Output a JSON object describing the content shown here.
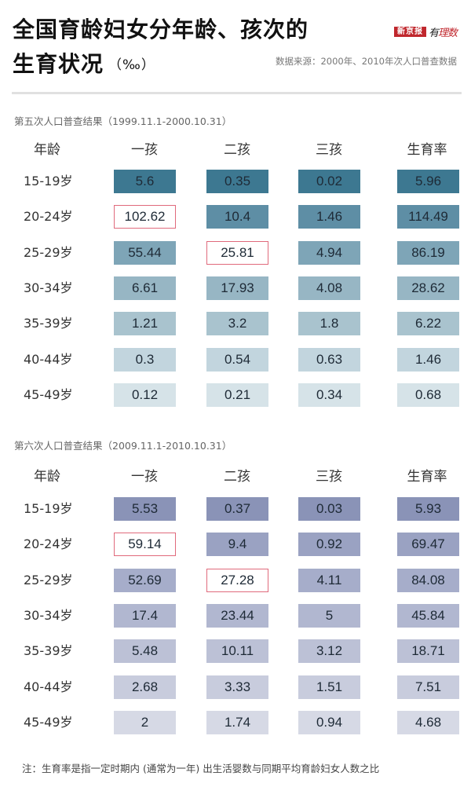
{
  "header": {
    "title_line1": "全国育龄妇女分年龄、孩次的",
    "title_line2": "生育状况",
    "title_unit": "（‰）",
    "logo_paper": "新京报",
    "logo_brand_a": "有",
    "logo_brand_b": "理数",
    "source": "数据来源：2000年、2010年次人口普查数据"
  },
  "colors": {
    "census5_palette": [
      "#3d7891",
      "#5e8ea5",
      "#7ea5b7",
      "#97b6c4",
      "#a9c3ce",
      "#c2d5de",
      "#d6e3e8"
    ],
    "census6_palette": [
      "#8a93b7",
      "#9aa2c2",
      "#a6adca",
      "#b1b7d0",
      "#bcc1d6",
      "#c8ccdd",
      "#d6d9e5"
    ],
    "highlight_border": "#e06a7c",
    "divider": "#e0e0e0"
  },
  "chart_data": [
    {
      "type": "table",
      "title": "第五次人口普查结果（1999.11.1-2000.10.31）",
      "columns": [
        "年龄",
        "一孩",
        "二孩",
        "三孩",
        "生育率"
      ],
      "categories": [
        "15-19岁",
        "20-24岁",
        "25-29岁",
        "30-34岁",
        "35-39岁",
        "40-44岁",
        "45-49岁"
      ],
      "series": [
        {
          "name": "一孩",
          "values": [
            5.6,
            102.62,
            55.44,
            6.61,
            1.21,
            0.3,
            0.12
          ]
        },
        {
          "name": "二孩",
          "values": [
            0.35,
            10.4,
            25.81,
            17.93,
            3.2,
            0.54,
            0.21
          ]
        },
        {
          "name": "三孩",
          "values": [
            0.02,
            1.46,
            4.94,
            4.08,
            1.8,
            0.63,
            0.34
          ]
        },
        {
          "name": "生育率",
          "values": [
            5.96,
            114.49,
            86.19,
            28.62,
            6.22,
            1.46,
            0.68
          ]
        }
      ],
      "highlighted": [
        {
          "row": "20-24岁",
          "col": "一孩"
        },
        {
          "row": "25-29岁",
          "col": "二孩"
        }
      ],
      "unit": "‰"
    },
    {
      "type": "table",
      "title": "第六次人口普查结果（2009.11.1-2010.10.31）",
      "columns": [
        "年龄",
        "一孩",
        "二孩",
        "三孩",
        "生育率"
      ],
      "categories": [
        "15-19岁",
        "20-24岁",
        "25-29岁",
        "30-34岁",
        "35-39岁",
        "40-44岁",
        "45-49岁"
      ],
      "series": [
        {
          "name": "一孩",
          "values": [
            5.53,
            59.14,
            52.69,
            17.4,
            5.48,
            2.68,
            2
          ]
        },
        {
          "name": "二孩",
          "values": [
            0.37,
            9.4,
            27.28,
            23.44,
            10.11,
            3.33,
            1.74
          ]
        },
        {
          "name": "三孩",
          "values": [
            0.03,
            0.92,
            4.11,
            5,
            3.12,
            1.51,
            0.94
          ]
        },
        {
          "name": "生育率",
          "values": [
            5.93,
            69.47,
            84.08,
            45.84,
            18.71,
            7.51,
            4.68
          ]
        }
      ],
      "highlighted": [
        {
          "row": "20-24岁",
          "col": "一孩"
        },
        {
          "row": "25-29岁",
          "col": "二孩"
        }
      ],
      "unit": "‰"
    }
  ],
  "tables": [
    {
      "title": "第五次人口普查结果（1999.11.1-2000.10.31）",
      "headers": [
        "年龄",
        "一孩",
        "二孩",
        "三孩",
        "生育率"
      ],
      "rows": [
        {
          "age": "15-19岁",
          "cells": [
            "5.6",
            "0.35",
            "0.02",
            "5.96"
          ]
        },
        {
          "age": "20-24岁",
          "cells": [
            "102.62",
            "10.4",
            "1.46",
            "114.49"
          ]
        },
        {
          "age": "25-29岁",
          "cells": [
            "55.44",
            "25.81",
            "4.94",
            "86.19"
          ]
        },
        {
          "age": "30-34岁",
          "cells": [
            "6.61",
            "17.93",
            "4.08",
            "28.62"
          ]
        },
        {
          "age": "35-39岁",
          "cells": [
            "1.21",
            "3.2",
            "1.8",
            "6.22"
          ]
        },
        {
          "age": "40-44岁",
          "cells": [
            "0.3",
            "0.54",
            "0.63",
            "1.46"
          ]
        },
        {
          "age": "45-49岁",
          "cells": [
            "0.12",
            "0.21",
            "0.34",
            "0.68"
          ]
        }
      ]
    },
    {
      "title": "第六次人口普查结果（2009.11.1-2010.10.31）",
      "headers": [
        "年龄",
        "一孩",
        "二孩",
        "三孩",
        "生育率"
      ],
      "rows": [
        {
          "age": "15-19岁",
          "cells": [
            "5.53",
            "0.37",
            "0.03",
            "5.93"
          ]
        },
        {
          "age": "20-24岁",
          "cells": [
            "59.14",
            "9.4",
            "0.92",
            "69.47"
          ]
        },
        {
          "age": "25-29岁",
          "cells": [
            "52.69",
            "27.28",
            "4.11",
            "84.08"
          ]
        },
        {
          "age": "30-34岁",
          "cells": [
            "17.4",
            "23.44",
            "5",
            "45.84"
          ]
        },
        {
          "age": "35-39岁",
          "cells": [
            "5.48",
            "10.11",
            "3.12",
            "18.71"
          ]
        },
        {
          "age": "40-44岁",
          "cells": [
            "2.68",
            "3.33",
            "1.51",
            "7.51"
          ]
        },
        {
          "age": "45-49岁",
          "cells": [
            "2",
            "1.74",
            "0.94",
            "4.68"
          ]
        }
      ]
    }
  ],
  "footer": {
    "note": "注：生育率是指一定时期内 (通常为一年) 出生活婴数与同期平均育龄妇女人数之比"
  }
}
